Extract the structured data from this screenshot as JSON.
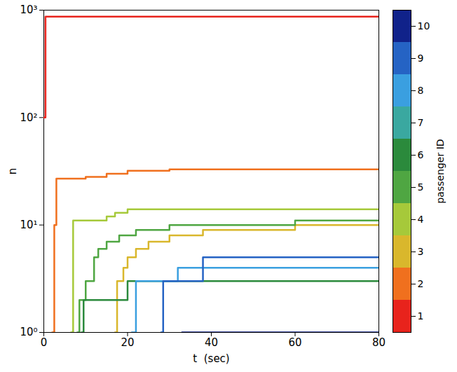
{
  "chart_data": {
    "type": "line",
    "line_style": "step",
    "log": "y",
    "grid": false,
    "legend": "right",
    "x_label": "t  (sec)",
    "y_label": "n",
    "xlim": [
      0,
      80
    ],
    "xticks": [
      0,
      20,
      40,
      60,
      80
    ],
    "ylim": [
      1,
      1000
    ],
    "yticks": [
      {
        "value": 1,
        "label": "10⁰"
      },
      {
        "value": 10,
        "label": "10¹"
      },
      {
        "value": 100,
        "label": "10²"
      },
      {
        "value": 1000,
        "label": "10³"
      }
    ],
    "series": [
      {
        "name": "1",
        "color": "#e8231c",
        "x": [
          0,
          0.4,
          80
        ],
        "values": [
          100,
          870,
          870
        ]
      },
      {
        "name": "2",
        "color": "#f0701e",
        "x": [
          2,
          2.5,
          3,
          10,
          15,
          20,
          30,
          80
        ],
        "values": [
          1,
          10,
          27,
          28,
          30,
          32,
          33,
          33
        ]
      },
      {
        "name": "3",
        "color": "#d9b72c",
        "x": [
          17,
          17.5,
          19,
          20,
          22,
          25,
          30,
          38,
          60,
          80
        ],
        "values": [
          1,
          3,
          4,
          5,
          6,
          7,
          8,
          9,
          10,
          10
        ]
      },
      {
        "name": "4",
        "color": "#a6c93a",
        "x": [
          6.5,
          7,
          15,
          17,
          20,
          80
        ],
        "values": [
          1,
          11,
          12,
          13,
          14,
          14
        ]
      },
      {
        "name": "5",
        "color": "#4fa642",
        "x": [
          8,
          8.5,
          10,
          12,
          13,
          15,
          18,
          22,
          30,
          60,
          80
        ],
        "values": [
          1,
          2,
          3,
          5,
          6,
          7,
          8,
          9,
          10,
          11,
          11
        ]
      },
      {
        "name": "6",
        "color": "#2b8a3c",
        "x": [
          9,
          9.5,
          20,
          80
        ],
        "values": [
          1,
          2,
          3,
          3
        ]
      },
      {
        "name": "8",
        "color": "#3a9fe0",
        "x": [
          21,
          22,
          32,
          80
        ],
        "values": [
          1,
          3,
          4,
          4
        ]
      },
      {
        "name": "9",
        "color": "#2563c4",
        "x": [
          28,
          28.5,
          38,
          80
        ],
        "values": [
          1,
          3,
          5,
          5
        ]
      },
      {
        "name": "10",
        "color": "#10228a",
        "x": [
          33,
          80
        ],
        "values": [
          1,
          1
        ]
      }
    ],
    "colorbar": {
      "label": "passenger ID",
      "ticks": [
        1,
        2,
        3,
        4,
        5,
        6,
        7,
        8,
        9,
        10
      ],
      "colors": [
        "#e8231c",
        "#f0701e",
        "#d9b72c",
        "#a6c93a",
        "#4fa642",
        "#2b8a3c",
        "#3aa8a0",
        "#3a9fe0",
        "#2563c4",
        "#10228a"
      ]
    }
  }
}
